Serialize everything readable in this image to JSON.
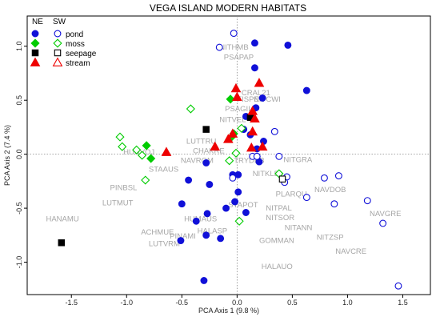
{
  "chart_data": {
    "type": "scatter",
    "title": "VEGA ISLAND MODERN HABITATS",
    "xlabel": "PCA Axis 1 (9.8 %)",
    "ylabel": "PCA Axis 2 (7.4 %)",
    "xlim": [
      -1.9,
      1.75
    ],
    "ylim": [
      -1.3,
      1.28
    ],
    "x_ticks": [
      -1.5,
      -1.0,
      -0.5,
      0.0,
      0.5,
      1.0,
      1.5
    ],
    "x_tick_labels": [
      "-1.5",
      "-1.0",
      "-0.5",
      "0.0",
      "0.5",
      "1.0",
      "1.5"
    ],
    "y_ticks": [
      -1.0,
      -0.5,
      0.0,
      0.5,
      1.0
    ],
    "y_tick_labels": [
      "-1.0",
      "-0.5",
      "0.0",
      "0.5",
      "1.0"
    ],
    "reference_lines": {
      "x": 0,
      "y": 0,
      "style": "dotted"
    },
    "legend": {
      "placement": "top-left",
      "header_ne": "NE",
      "header_sw": "SW",
      "entries": [
        {
          "label": "pond",
          "color": "#1010d8",
          "marker": "circle"
        },
        {
          "label": "moss",
          "color": "#00cc00",
          "marker": "diamond"
        },
        {
          "label": "seepage",
          "color": "#000000",
          "marker": "square"
        },
        {
          "label": "stream",
          "color": "#ee0000",
          "marker": "triangle"
        }
      ]
    },
    "series": [
      {
        "name": "pond",
        "marker": "circle",
        "color": "#1010d8",
        "points": [
          {
            "x": -0.03,
            "y": 1.12,
            "fill": "open"
          },
          {
            "x": -0.16,
            "y": 0.99,
            "fill": "open"
          },
          {
            "x": 0.16,
            "y": 1.03,
            "fill": "filled"
          },
          {
            "x": 0.46,
            "y": 1.01,
            "fill": "filled"
          },
          {
            "x": 0.16,
            "y": 0.8,
            "fill": "filled"
          },
          {
            "x": 0.63,
            "y": 0.59,
            "fill": "filled"
          },
          {
            "x": 0.23,
            "y": 0.52,
            "fill": "filled"
          },
          {
            "x": 0.17,
            "y": 0.43,
            "fill": "filled"
          },
          {
            "x": 0.08,
            "y": 0.35,
            "fill": "filled"
          },
          {
            "x": 0.06,
            "y": 0.23,
            "fill": "filled"
          },
          {
            "x": 0.12,
            "y": 0.18,
            "fill": "filled"
          },
          {
            "x": 0.34,
            "y": 0.21,
            "fill": "open"
          },
          {
            "x": 0.24,
            "y": 0.12,
            "fill": "filled"
          },
          {
            "x": 0.18,
            "y": 0.05,
            "fill": "filled"
          },
          {
            "x": 0.18,
            "y": -0.02,
            "fill": "filled"
          },
          {
            "x": 0.2,
            "y": -0.07,
            "fill": "filled"
          },
          {
            "x": 0.14,
            "y": -0.02,
            "fill": "open"
          },
          {
            "x": 0.18,
            "y": -0.02,
            "fill": "open"
          },
          {
            "x": 0.38,
            "y": -0.02,
            "fill": "open"
          },
          {
            "x": 0.45,
            "y": -0.21,
            "fill": "open"
          },
          {
            "x": 0.43,
            "y": -0.26,
            "fill": "open"
          },
          {
            "x": 0.63,
            "y": -0.4,
            "fill": "open"
          },
          {
            "x": 0.79,
            "y": -0.22,
            "fill": "open"
          },
          {
            "x": 0.92,
            "y": -0.2,
            "fill": "open"
          },
          {
            "x": 0.88,
            "y": -0.46,
            "fill": "open"
          },
          {
            "x": 1.18,
            "y": -0.43,
            "fill": "open"
          },
          {
            "x": 1.32,
            "y": -0.64,
            "fill": "open"
          },
          {
            "x": 1.46,
            "y": -1.22,
            "fill": "open"
          },
          {
            "x": -0.04,
            "y": -0.19,
            "fill": "filled"
          },
          {
            "x": -0.04,
            "y": -0.22,
            "fill": "open"
          },
          {
            "x": 0.01,
            "y": -0.19,
            "fill": "filled"
          },
          {
            "x": 0.01,
            "y": -0.35,
            "fill": "filled"
          },
          {
            "x": -0.02,
            "y": -0.44,
            "fill": "filled"
          },
          {
            "x": 0.08,
            "y": -0.54,
            "fill": "filled"
          },
          {
            "x": -0.1,
            "y": -0.5,
            "fill": "filled"
          },
          {
            "x": -0.28,
            "y": -0.08,
            "fill": "filled"
          },
          {
            "x": -0.25,
            "y": -0.28,
            "fill": "filled"
          },
          {
            "x": -0.44,
            "y": -0.24,
            "fill": "filled"
          },
          {
            "x": -0.5,
            "y": -0.46,
            "fill": "filled"
          },
          {
            "x": -0.27,
            "y": -0.55,
            "fill": "filled"
          },
          {
            "x": -0.37,
            "y": -0.62,
            "fill": "filled"
          },
          {
            "x": -0.28,
            "y": -0.75,
            "fill": "filled"
          },
          {
            "x": -0.15,
            "y": -0.78,
            "fill": "filled"
          },
          {
            "x": -0.51,
            "y": -0.8,
            "fill": "filled"
          },
          {
            "x": -0.3,
            "y": -1.17,
            "fill": "filled"
          }
        ]
      },
      {
        "name": "moss",
        "marker": "diamond",
        "color": "#00cc00",
        "points": [
          {
            "x": -0.06,
            "y": 0.51,
            "fill": "filled"
          },
          {
            "x": -0.42,
            "y": 0.42,
            "fill": "open"
          },
          {
            "x": -1.06,
            "y": 0.16,
            "fill": "open"
          },
          {
            "x": -1.04,
            "y": 0.07,
            "fill": "open"
          },
          {
            "x": -0.91,
            "y": 0.04,
            "fill": "open"
          },
          {
            "x": -0.82,
            "y": 0.08,
            "fill": "filled"
          },
          {
            "x": -0.86,
            "y": -0.01,
            "fill": "open"
          },
          {
            "x": -0.78,
            "y": -0.04,
            "fill": "filled"
          },
          {
            "x": -0.83,
            "y": -0.24,
            "fill": "open"
          },
          {
            "x": -0.03,
            "y": 0.19,
            "fill": "filled"
          },
          {
            "x": -0.05,
            "y": 0.16,
            "fill": "filled"
          },
          {
            "x": 0.04,
            "y": 0.24,
            "fill": "open"
          },
          {
            "x": -0.01,
            "y": 0.01,
            "fill": "open"
          },
          {
            "x": -0.07,
            "y": -0.06,
            "fill": "open"
          },
          {
            "x": 0.38,
            "y": -0.18,
            "fill": "open"
          },
          {
            "x": 0.02,
            "y": -0.62,
            "fill": "open"
          }
        ]
      },
      {
        "name": "seepage",
        "marker": "square",
        "color": "#000000",
        "points": [
          {
            "x": -0.28,
            "y": 0.23,
            "fill": "filled"
          },
          {
            "x": 0.12,
            "y": 0.34,
            "fill": "filled"
          },
          {
            "x": 0.41,
            "y": -0.23,
            "fill": "open"
          },
          {
            "x": -1.59,
            "y": -0.82,
            "fill": "filled"
          }
        ]
      },
      {
        "name": "stream",
        "marker": "triangle",
        "color": "#ee0000",
        "points": [
          {
            "x": 0.2,
            "y": 0.66,
            "fill": "filled"
          },
          {
            "x": -0.01,
            "y": 0.61,
            "fill": "filled"
          },
          {
            "x": 0.0,
            "y": 0.53,
            "fill": "filled"
          },
          {
            "x": 0.14,
            "y": 0.4,
            "fill": "filled"
          },
          {
            "x": 0.16,
            "y": 0.33,
            "fill": "filled"
          },
          {
            "x": 0.14,
            "y": 0.21,
            "fill": "filled"
          },
          {
            "x": -0.04,
            "y": 0.19,
            "fill": "filled"
          },
          {
            "x": -0.08,
            "y": 0.14,
            "fill": "filled"
          },
          {
            "x": -0.2,
            "y": 0.07,
            "fill": "filled"
          },
          {
            "x": -0.64,
            "y": 0.02,
            "fill": "filled"
          },
          {
            "x": 0.13,
            "y": 0.06,
            "fill": "filled"
          },
          {
            "x": 0.23,
            "y": 0.07,
            "fill": "filled"
          }
        ]
      }
    ],
    "annotations": [
      {
        "text": "NITHMB",
        "x": -0.16,
        "y": 0.99
      },
      {
        "text": "PSAPAP",
        "x": -0.12,
        "y": 0.9
      },
      {
        "text": "CRAL21",
        "x": 0.04,
        "y": 0.57
      },
      {
        "text": "FISPE",
        "x": 0.0,
        "y": 0.51
      },
      {
        "text": "NITCWI",
        "x": 0.15,
        "y": 0.51
      },
      {
        "text": "PSAGII",
        "x": -0.11,
        "y": 0.42
      },
      {
        "text": "NITVEL",
        "x": -0.16,
        "y": 0.32
      },
      {
        "text": "LUTTRU",
        "x": -0.46,
        "y": 0.12
      },
      {
        "text": "CHAKRE",
        "x": -0.4,
        "y": 0.03
      },
      {
        "text": "NAVROM",
        "x": -0.51,
        "y": -0.06
      },
      {
        "text": "TRYDEB",
        "x": -0.03,
        "y": -0.06
      },
      {
        "text": "NITGRA",
        "x": 0.42,
        "y": -0.05
      },
      {
        "text": "HUNVOJ",
        "x": -1.03,
        "y": 0.02
      },
      {
        "text": "STAAUS",
        "x": -0.8,
        "y": -0.14
      },
      {
        "text": "NITKLE",
        "x": 0.14,
        "y": -0.18
      },
      {
        "text": "NAVDOB",
        "x": 0.7,
        "y": -0.33
      },
      {
        "text": "PLARQU",
        "x": 0.35,
        "y": -0.37
      },
      {
        "text": "PINBSL",
        "x": -1.15,
        "y": -0.31
      },
      {
        "text": "LUTMUT",
        "x": -1.22,
        "y": -0.45
      },
      {
        "text": "STAPOT",
        "x": -0.08,
        "y": -0.47
      },
      {
        "text": "NITPAL",
        "x": 0.26,
        "y": -0.5
      },
      {
        "text": "NITSOR",
        "x": 0.26,
        "y": -0.59
      },
      {
        "text": "NAVGRE",
        "x": 1.2,
        "y": -0.55
      },
      {
        "text": "HANAMU",
        "x": -1.73,
        "y": -0.6
      },
      {
        "text": "HUMAUS",
        "x": -0.48,
        "y": -0.6
      },
      {
        "text": "NITANN",
        "x": 0.43,
        "y": -0.68
      },
      {
        "text": "HALASP",
        "x": -0.36,
        "y": -0.71
      },
      {
        "text": "ACHMUE",
        "x": -0.87,
        "y": -0.72
      },
      {
        "text": "PINAMI",
        "x": -0.61,
        "y": -0.76
      },
      {
        "text": "NITZSP",
        "x": 0.72,
        "y": -0.77
      },
      {
        "text": "GOMMAN",
        "x": 0.2,
        "y": -0.8
      },
      {
        "text": "LUTVRM",
        "x": -0.8,
        "y": -0.83
      },
      {
        "text": "NAVCRE",
        "x": 0.89,
        "y": -0.9
      },
      {
        "text": "HALAUO",
        "x": 0.22,
        "y": -1.04
      }
    ]
  }
}
